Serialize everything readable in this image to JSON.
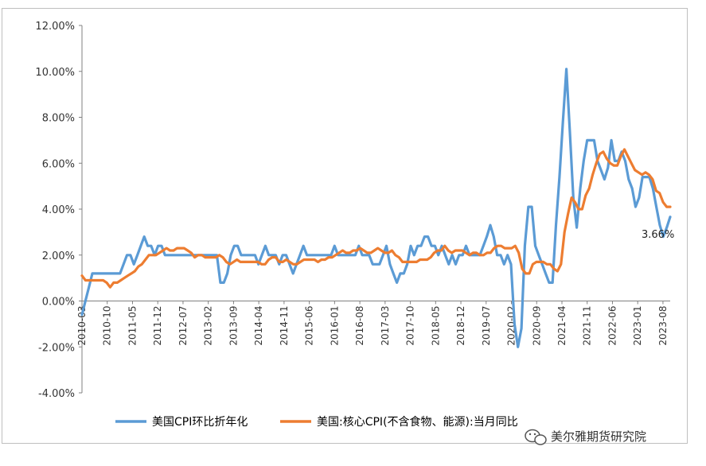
{
  "chart_data": {
    "type": "line",
    "y_axis": {
      "ticks": [
        "12.00%",
        "10.00%",
        "8.00%",
        "6.00%",
        "4.00%",
        "2.00%",
        "0.00%",
        "-2.00%",
        "-4.00%"
      ],
      "ylim": [
        -4,
        12
      ],
      "tick_values": [
        12,
        10,
        8,
        6,
        4,
        2,
        0,
        -2,
        -4
      ]
    },
    "x_axis": {
      "tick_labels": [
        "2010-03",
        "2010-10",
        "2011-05",
        "2011-12",
        "2012-07",
        "2013-02",
        "2013-09",
        "2014-04",
        "2014-11",
        "2015-06",
        "2016-01",
        "2016-08",
        "2017-03",
        "2017-10",
        "2018-05",
        "2018-12",
        "2019-07",
        "2020-02",
        "2020-09",
        "2021-04",
        "2021-11",
        "2022-06",
        "2023-01",
        "2023-08"
      ],
      "start": "2010-03",
      "end": "2023-10"
    },
    "grid": false,
    "legend_position": "bottom",
    "series": [
      {
        "name": "美国CPI环比折年化",
        "color": "#5B9BD5",
        "values": [
          -0.6,
          0.0,
          0.6,
          1.2,
          1.2,
          1.2,
          1.2,
          1.2,
          1.2,
          1.2,
          1.2,
          1.2,
          1.6,
          2.0,
          2.0,
          1.6,
          2.0,
          2.4,
          2.8,
          2.4,
          2.4,
          2.0,
          2.4,
          2.4,
          2.0,
          2.0,
          2.0,
          2.0,
          2.0,
          2.0,
          2.0,
          2.0,
          2.0,
          2.0,
          2.0,
          2.0,
          2.0,
          2.0,
          2.0,
          2.0,
          0.8,
          0.8,
          1.2,
          2.0,
          2.4,
          2.4,
          2.0,
          2.0,
          2.0,
          2.0,
          2.0,
          1.6,
          2.0,
          2.4,
          2.0,
          2.0,
          2.0,
          1.6,
          2.0,
          2.0,
          1.6,
          1.2,
          1.6,
          2.0,
          2.4,
          2.0,
          2.0,
          2.0,
          2.0,
          2.0,
          2.0,
          2.0,
          2.0,
          2.4,
          2.0,
          2.0,
          2.0,
          2.0,
          2.0,
          2.0,
          2.4,
          2.0,
          2.0,
          2.0,
          1.6,
          1.6,
          1.6,
          2.0,
          2.4,
          1.6,
          1.2,
          0.8,
          1.2,
          1.2,
          1.6,
          2.4,
          2.0,
          2.4,
          2.4,
          2.8,
          2.8,
          2.4,
          2.4,
          2.0,
          2.4,
          2.0,
          1.6,
          2.0,
          1.6,
          2.0,
          2.0,
          2.4,
          2.0,
          2.0,
          2.0,
          2.0,
          2.4,
          2.8,
          3.3,
          2.8,
          2.0,
          2.0,
          1.6,
          2.0,
          1.6,
          -1.0,
          -2.0,
          -1.2,
          2.4,
          4.1,
          4.1,
          2.4,
          2.0,
          1.6,
          1.2,
          0.8,
          0.8,
          3.3,
          5.4,
          7.8,
          10.1,
          7.4,
          4.5,
          3.2,
          4.9,
          6.1,
          7.0,
          7.0,
          7.0,
          6.1,
          5.7,
          5.3,
          5.8,
          7.0,
          6.1,
          6.1,
          6.5,
          6.1,
          5.3,
          4.9,
          4.1,
          4.5,
          5.4,
          5.4,
          5.4,
          4.9,
          4.1,
          3.3,
          2.8,
          3.2,
          3.66
        ]
      },
      {
        "name": "美国:核心CPI(不含食物、能源):当月同比",
        "color": "#ED7D31",
        "values": [
          1.1,
          0.9,
          0.9,
          0.9,
          0.9,
          0.9,
          0.9,
          0.8,
          0.6,
          0.8,
          0.8,
          0.9,
          1.0,
          1.1,
          1.2,
          1.3,
          1.5,
          1.6,
          1.8,
          2.0,
          2.0,
          2.0,
          2.1,
          2.2,
          2.3,
          2.2,
          2.2,
          2.3,
          2.3,
          2.3,
          2.2,
          2.1,
          1.9,
          2.0,
          2.0,
          1.9,
          1.9,
          1.9,
          1.9,
          2.0,
          1.9,
          1.7,
          1.6,
          1.7,
          1.8,
          1.7,
          1.7,
          1.7,
          1.7,
          1.7,
          1.7,
          1.6,
          1.6,
          1.8,
          1.9,
          1.9,
          1.7,
          1.7,
          1.8,
          1.7,
          1.6,
          1.6,
          1.7,
          1.8,
          1.8,
          1.8,
          1.8,
          1.7,
          1.8,
          1.8,
          1.9,
          1.9,
          2.0,
          2.1,
          2.2,
          2.1,
          2.1,
          2.2,
          2.2,
          2.3,
          2.2,
          2.1,
          2.1,
          2.2,
          2.3,
          2.2,
          2.1,
          2.1,
          2.2,
          2.0,
          1.9,
          1.7,
          1.7,
          1.7,
          1.7,
          1.7,
          1.8,
          1.8,
          1.8,
          1.9,
          2.1,
          2.2,
          2.2,
          2.4,
          2.2,
          2.1,
          2.2,
          2.2,
          2.2,
          2.1,
          2.0,
          2.1,
          2.1,
          2.0,
          2.0,
          2.1,
          2.1,
          2.3,
          2.4,
          2.4,
          2.3,
          2.3,
          2.3,
          2.4,
          2.1,
          1.4,
          1.2,
          1.2,
          1.6,
          1.7,
          1.7,
          1.7,
          1.6,
          1.6,
          1.4,
          1.3,
          1.6,
          3.0,
          3.8,
          4.5,
          4.3,
          4.0,
          4.0,
          4.6,
          4.9,
          5.5,
          6.0,
          6.4,
          6.5,
          6.2,
          6.0,
          5.9,
          5.9,
          6.3,
          6.6,
          6.3,
          6.0,
          5.7,
          5.6,
          5.5,
          5.6,
          5.5,
          5.3,
          4.8,
          4.7,
          4.3,
          4.1,
          4.1
        ]
      }
    ],
    "annotations": [
      {
        "text": "3.66%",
        "series": "美国CPI环比折年化",
        "x": "2023-10",
        "y": 3.66
      }
    ]
  },
  "watermark": {
    "text": "美尔雅期货研究院",
    "icon": "wechat-bubble-icon"
  }
}
